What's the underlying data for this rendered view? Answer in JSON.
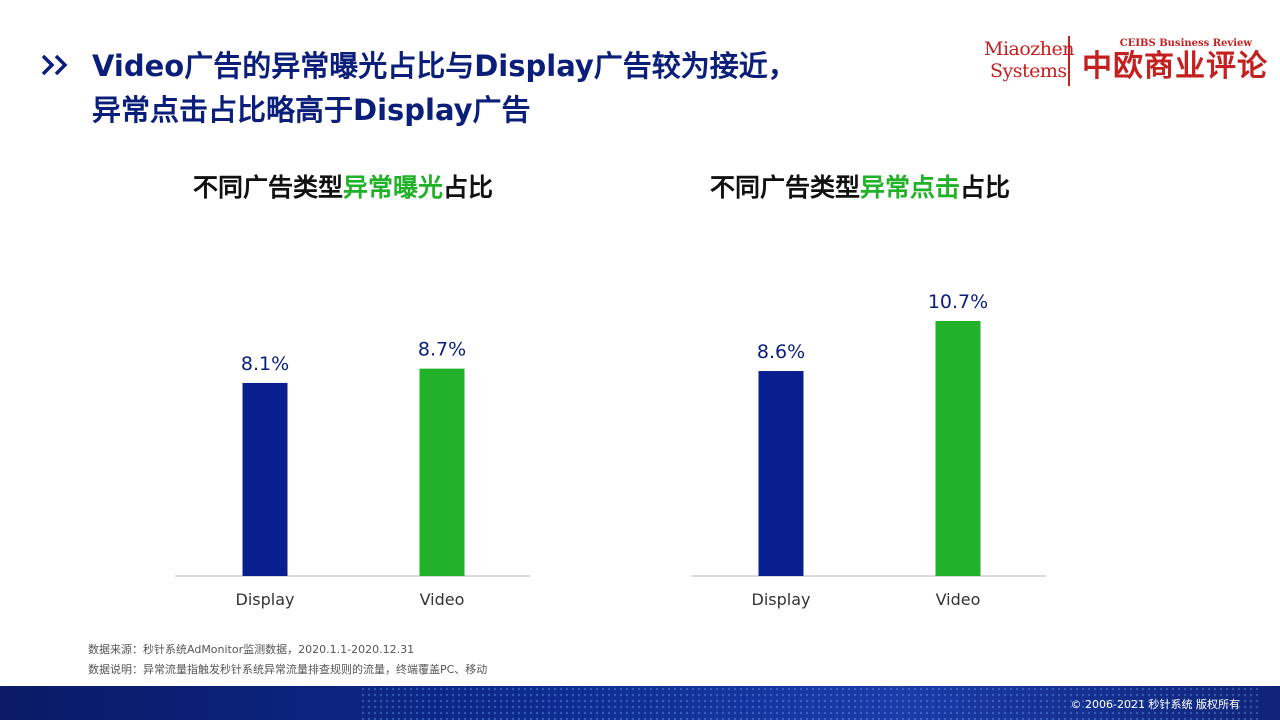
{
  "header": {
    "title_line1": "Video广告的异常曝光占比与Display广告较为接近，",
    "title_line2": "异常点击占比略高于Display广告"
  },
  "logos": {
    "miaozhen_line1": "Miaozhen",
    "miaozhen_line2": "Systems",
    "ceibs_en": "CEIBS Business Review",
    "ceibs_cn": "中欧商业评论"
  },
  "colors": {
    "title": "#0b1f7a",
    "display_bar": "#0a1f8f",
    "video_bar": "#22b229",
    "highlight": "#22b229",
    "logo_red": "#c3201f"
  },
  "chart_data": [
    {
      "type": "bar",
      "title_prefix": "不同广告类型",
      "title_highlight": "异常曝光",
      "title_suffix": "占比",
      "categories": [
        "Display",
        "Video"
      ],
      "values": [
        8.1,
        8.7
      ],
      "value_labels": [
        "8.1%",
        "8.7%"
      ],
      "unit": "%",
      "ylim": [
        0,
        12
      ]
    },
    {
      "type": "bar",
      "title_prefix": "不同广告类型",
      "title_highlight": "异常点击",
      "title_suffix": "占比",
      "categories": [
        "Display",
        "Video"
      ],
      "values": [
        8.6,
        10.7
      ],
      "value_labels": [
        "8.6%",
        "10.7%"
      ],
      "unit": "%",
      "ylim": [
        0,
        12
      ]
    }
  ],
  "notes": {
    "source": "数据来源：秒针系统AdMonitor监测数据，2020.1.1-2020.12.31",
    "explanation": "数据说明：异常流量指触发秒针系统异常流量排查规则的流量，终端覆盖PC、移动"
  },
  "footer": {
    "copyright": "© 2006-2021 秒针系统 版权所有"
  }
}
